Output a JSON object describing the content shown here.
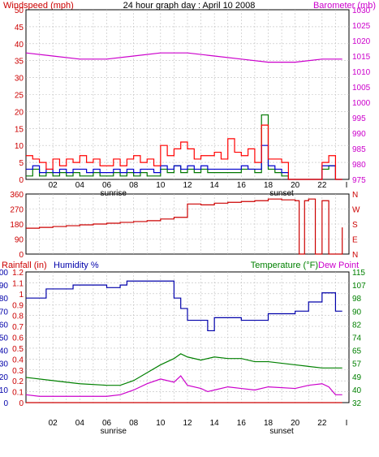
{
  "title": "24 hour graph day : April 10 2008",
  "colors": {
    "wind": "#cc0000",
    "gust": "#ff0000",
    "avg": "#0000cc",
    "baro": "#cc00cc",
    "green": "#007700",
    "dir": "#cc0000",
    "humidity": "#0000aa",
    "temperature": "#008000",
    "dewpoint": "#cc00cc",
    "rain": "#cc0000",
    "grid": "#bfbfbf",
    "frame": "#000000"
  },
  "x_ticks": [
    "02",
    "04",
    "06",
    "08",
    "10",
    "12",
    "14",
    "16",
    "18",
    "20",
    "22"
  ],
  "x_end_tick": "I",
  "sunrise_label": "sunrise",
  "sunset_label": "sunset",
  "chart_data": [
    {
      "type": "line",
      "ylabel": "Windspeed (mph)",
      "y2label": "Barometer (mb)",
      "ylim": [
        0,
        50
      ],
      "y2lim": [
        975,
        1030
      ],
      "y_ticks": [
        "0",
        "5",
        "10",
        "15",
        "20",
        "25",
        "30",
        "35",
        "40",
        "45",
        "50"
      ],
      "y2_ticks": [
        "975",
        "980",
        "985",
        "990",
        "995",
        "1000",
        "1005",
        "1010",
        "1015",
        "1020",
        "1025",
        "1030"
      ],
      "barometer": [
        [
          0,
          1016
        ],
        [
          2,
          1015
        ],
        [
          4,
          1014
        ],
        [
          6,
          1014
        ],
        [
          8,
          1015
        ],
        [
          10,
          1016
        ],
        [
          12,
          1016
        ],
        [
          14,
          1015
        ],
        [
          16,
          1014
        ],
        [
          18,
          1013
        ],
        [
          20,
          1013
        ],
        [
          22,
          1014
        ],
        [
          23.5,
          1014
        ]
      ],
      "wind_gust": [
        [
          0,
          7
        ],
        [
          0.5,
          6
        ],
        [
          1,
          5
        ],
        [
          1.5,
          3
        ],
        [
          2,
          6
        ],
        [
          2.5,
          4
        ],
        [
          3,
          6
        ],
        [
          3.5,
          5
        ],
        [
          4,
          7
        ],
        [
          4.5,
          5
        ],
        [
          5,
          6
        ],
        [
          5.5,
          4
        ],
        [
          6,
          4
        ],
        [
          6.5,
          6
        ],
        [
          7,
          4
        ],
        [
          7.5,
          6
        ],
        [
          8,
          7
        ],
        [
          8.5,
          5
        ],
        [
          9,
          6
        ],
        [
          9.5,
          4
        ],
        [
          10,
          10
        ],
        [
          10.5,
          7
        ],
        [
          11,
          9
        ],
        [
          11.5,
          11
        ],
        [
          12,
          9
        ],
        [
          12.5,
          6
        ],
        [
          13,
          7
        ],
        [
          13.5,
          7
        ],
        [
          14,
          8
        ],
        [
          14.5,
          6
        ],
        [
          15,
          12
        ],
        [
          15.5,
          8
        ],
        [
          16,
          7
        ],
        [
          16.5,
          9
        ],
        [
          17,
          5
        ],
        [
          17.5,
          16
        ],
        [
          18,
          6
        ],
        [
          18.5,
          6
        ],
        [
          19,
          5
        ],
        [
          19.5,
          0
        ],
        [
          20,
          0
        ],
        [
          20.5,
          0
        ],
        [
          21,
          0
        ],
        [
          21.5,
          0
        ],
        [
          22,
          5
        ],
        [
          22.5,
          7
        ],
        [
          23,
          0
        ],
        [
          23.5,
          0
        ]
      ],
      "wind_avg": [
        [
          0,
          3
        ],
        [
          0.5,
          4
        ],
        [
          1,
          2
        ],
        [
          1.5,
          3
        ],
        [
          2,
          2
        ],
        [
          2.5,
          3
        ],
        [
          3,
          2
        ],
        [
          3.5,
          3
        ],
        [
          4,
          3
        ],
        [
          4.5,
          2
        ],
        [
          5,
          3
        ],
        [
          5.5,
          2
        ],
        [
          6,
          2
        ],
        [
          6.5,
          3
        ],
        [
          7,
          2
        ],
        [
          7.5,
          3
        ],
        [
          8,
          2
        ],
        [
          8.5,
          3
        ],
        [
          9,
          3
        ],
        [
          9.5,
          2
        ],
        [
          10,
          4
        ],
        [
          10.5,
          3
        ],
        [
          11,
          4
        ],
        [
          11.5,
          3
        ],
        [
          12,
          4
        ],
        [
          12.5,
          3
        ],
        [
          13,
          4
        ],
        [
          13.5,
          3
        ],
        [
          14,
          3
        ],
        [
          14.5,
          3
        ],
        [
          15,
          3
        ],
        [
          15.5,
          3
        ],
        [
          16,
          4
        ],
        [
          16.5,
          3
        ],
        [
          17,
          3
        ],
        [
          17.5,
          10
        ],
        [
          18,
          4
        ],
        [
          18.5,
          3
        ],
        [
          19,
          2
        ],
        [
          19.5,
          0
        ],
        [
          20,
          0
        ],
        [
          20.5,
          0
        ],
        [
          21,
          0
        ],
        [
          21.5,
          0
        ],
        [
          22,
          4
        ],
        [
          22.5,
          4
        ],
        [
          23,
          0
        ],
        [
          23.5,
          0
        ]
      ],
      "wind_green": [
        [
          0,
          1
        ],
        [
          0.5,
          3
        ],
        [
          1,
          1
        ],
        [
          1.5,
          2
        ],
        [
          2,
          1
        ],
        [
          2.5,
          2
        ],
        [
          3,
          1
        ],
        [
          3.5,
          2
        ],
        [
          4,
          1
        ],
        [
          4.5,
          1
        ],
        [
          5,
          2
        ],
        [
          5.5,
          1
        ],
        [
          6,
          1
        ],
        [
          6.5,
          2
        ],
        [
          7,
          1
        ],
        [
          7.5,
          2
        ],
        [
          8,
          1
        ],
        [
          8.5,
          2
        ],
        [
          9,
          1
        ],
        [
          9.5,
          1
        ],
        [
          10,
          3
        ],
        [
          10.5,
          2
        ],
        [
          11,
          4
        ],
        [
          11.5,
          2
        ],
        [
          12,
          3
        ],
        [
          12.5,
          2
        ],
        [
          13,
          3
        ],
        [
          13.5,
          2
        ],
        [
          14,
          2
        ],
        [
          14.5,
          2
        ],
        [
          15,
          2
        ],
        [
          15.5,
          2
        ],
        [
          16,
          3
        ],
        [
          16.5,
          3
        ],
        [
          17,
          2
        ],
        [
          17.5,
          19
        ],
        [
          18,
          3
        ],
        [
          18.5,
          2
        ],
        [
          19,
          1
        ],
        [
          19.5,
          0
        ],
        [
          20,
          0
        ],
        [
          20.5,
          0
        ],
        [
          21,
          0
        ],
        [
          21.5,
          0
        ],
        [
          22,
          3
        ],
        [
          22.5,
          4
        ],
        [
          23,
          0
        ],
        [
          23.5,
          0
        ]
      ]
    },
    {
      "type": "line",
      "ylim": [
        0,
        360
      ],
      "y_ticks": [
        "0",
        "90",
        "180",
        "270",
        "360"
      ],
      "y2_ticks": [
        "N",
        "E",
        "S",
        "W",
        "N"
      ],
      "wind_direction": [
        [
          0,
          155
        ],
        [
          1,
          160
        ],
        [
          2,
          165
        ],
        [
          3,
          170
        ],
        [
          4,
          175
        ],
        [
          5,
          180
        ],
        [
          6,
          185
        ],
        [
          7,
          190
        ],
        [
          8,
          195
        ],
        [
          9,
          200
        ],
        [
          10,
          210
        ],
        [
          11,
          220
        ],
        [
          12,
          300
        ],
        [
          13,
          295
        ],
        [
          14,
          305
        ],
        [
          15,
          310
        ],
        [
          16,
          315
        ],
        [
          17,
          320
        ],
        [
          18,
          330
        ],
        [
          19,
          325
        ],
        [
          20,
          320
        ],
        [
          20.3,
          0
        ],
        [
          20.7,
          320
        ],
        [
          21,
          330
        ],
        [
          21.5,
          0
        ],
        [
          22,
          320
        ],
        [
          22.5,
          0
        ],
        [
          23,
          0
        ],
        [
          23.5,
          160
        ]
      ]
    },
    {
      "type": "line",
      "ylabel": "Rainfall (in)",
      "y2label": "Temperature (°F)",
      "y_ticks_rain": [
        "0",
        "0.1",
        "0.2",
        "0.3",
        "0.4",
        "0.5",
        "0.6",
        "0.7",
        "0.8",
        "0.9",
        "1",
        "1.1",
        "1.2"
      ],
      "y_ticks_humidity": [
        "0",
        "10",
        "20",
        "30",
        "40",
        "50",
        "60",
        "70",
        "80",
        "90",
        "100"
      ],
      "humidity_label": "Humidity %",
      "dewpoint_label": "Dew Point",
      "y2_ticks": [
        "32",
        "40",
        "49",
        "57",
        "65",
        "74",
        "82",
        "90",
        "98",
        "107",
        "115"
      ],
      "ylim": [
        0,
        100
      ],
      "y2lim": [
        32,
        115
      ],
      "humidity": [
        [
          0,
          80
        ],
        [
          1,
          80
        ],
        [
          1.5,
          87
        ],
        [
          3,
          87
        ],
        [
          3.5,
          90
        ],
        [
          5.5,
          90
        ],
        [
          6,
          88
        ],
        [
          7,
          90
        ],
        [
          7.5,
          93
        ],
        [
          10,
          93
        ],
        [
          11,
          80
        ],
        [
          11.5,
          72
        ],
        [
          12,
          63
        ],
        [
          13,
          63
        ],
        [
          13.5,
          55
        ],
        [
          14,
          65
        ],
        [
          16,
          63
        ],
        [
          17,
          63
        ],
        [
          18,
          68
        ],
        [
          20,
          70
        ],
        [
          21,
          77
        ],
        [
          22,
          84
        ],
        [
          22.5,
          84
        ],
        [
          23,
          70
        ],
        [
          23.5,
          70
        ]
      ],
      "temperature": [
        [
          0,
          48
        ],
        [
          2,
          46
        ],
        [
          4,
          44
        ],
        [
          6,
          43
        ],
        [
          7,
          43
        ],
        [
          8,
          46
        ],
        [
          9,
          51
        ],
        [
          10,
          56
        ],
        [
          11,
          60
        ],
        [
          11.5,
          63
        ],
        [
          12,
          61
        ],
        [
          13,
          59
        ],
        [
          14,
          61
        ],
        [
          15,
          60
        ],
        [
          16,
          60
        ],
        [
          17,
          58
        ],
        [
          18,
          58
        ],
        [
          20,
          56
        ],
        [
          21,
          55
        ],
        [
          22,
          54
        ],
        [
          23.5,
          54
        ]
      ],
      "dewpoint": [
        [
          0,
          37
        ],
        [
          1,
          36
        ],
        [
          2,
          36
        ],
        [
          4,
          36
        ],
        [
          6,
          36
        ],
        [
          7,
          37
        ],
        [
          8,
          40
        ],
        [
          9,
          44
        ],
        [
          10,
          47
        ],
        [
          11,
          45
        ],
        [
          11.5,
          49
        ],
        [
          12,
          43
        ],
        [
          13,
          41
        ],
        [
          13.5,
          39
        ],
        [
          14,
          40
        ],
        [
          15,
          42
        ],
        [
          16,
          41
        ],
        [
          17,
          40
        ],
        [
          18,
          42
        ],
        [
          20,
          41
        ],
        [
          21,
          43
        ],
        [
          22,
          44
        ],
        [
          22.5,
          42
        ],
        [
          23,
          37
        ],
        [
          23.5,
          37
        ]
      ],
      "rainfall": [
        [
          0,
          0
        ],
        [
          23.5,
          0
        ]
      ]
    }
  ]
}
